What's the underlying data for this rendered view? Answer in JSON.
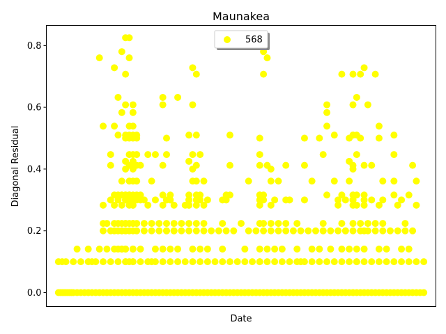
{
  "chart_data": {
    "type": "scatter",
    "title": "Maunakea",
    "xlabel": "Date",
    "ylabel": "Diagonal Residual",
    "ylim": [
      -0.045,
      0.865
    ],
    "xlim": [
      0,
      1
    ],
    "yticks": [
      0.0,
      0.2,
      0.4,
      0.6,
      0.8
    ],
    "ytick_labels": [
      "0.0",
      "0.2",
      "0.4",
      "0.6",
      "0.8"
    ],
    "xticks": [],
    "grid": false,
    "legend_position": "upper-center",
    "series": [
      {
        "name": "568",
        "color": "#ffff00",
        "x": [
          0.01,
          0.015,
          0.02,
          0.025,
          0.03,
          0.035,
          0.04,
          0.045,
          0.05,
          0.06,
          0.07,
          0.08,
          0.09,
          0.1,
          0.11,
          0.12,
          0.13,
          0.14,
          0.15,
          0.16,
          0.17,
          0.18,
          0.19,
          0.2,
          0.21,
          0.22,
          0.23,
          0.24,
          0.25,
          0.26,
          0.27,
          0.28,
          0.29,
          0.3,
          0.31,
          0.32,
          0.33,
          0.34,
          0.35,
          0.36,
          0.37,
          0.38,
          0.39,
          0.4,
          0.41,
          0.42,
          0.43,
          0.44,
          0.45,
          0.46,
          0.47,
          0.48,
          0.49,
          0.5,
          0.51,
          0.52,
          0.53,
          0.54,
          0.55,
          0.56,
          0.57,
          0.58,
          0.59,
          0.6,
          0.61,
          0.62,
          0.63,
          0.64,
          0.65,
          0.66,
          0.67,
          0.68,
          0.69,
          0.7,
          0.71,
          0.72,
          0.73,
          0.74,
          0.75,
          0.76,
          0.77,
          0.78,
          0.79,
          0.8,
          0.81,
          0.82,
          0.83,
          0.84,
          0.85,
          0.86,
          0.87,
          0.88,
          0.89,
          0.9,
          0.91,
          0.92,
          0.93,
          0.94,
          0.95,
          0.96,
          0.97,
          0.98,
          0.99,
          0.01,
          0.02,
          0.03,
          0.05,
          0.07,
          0.09,
          0.1,
          0.11,
          0.13,
          0.15,
          0.17,
          0.19,
          0.2,
          0.21,
          0.23,
          0.25,
          0.27,
          0.29,
          0.31,
          0.33,
          0.35,
          0.37,
          0.39,
          0.41,
          0.43,
          0.45,
          0.47,
          0.49,
          0.51,
          0.53,
          0.55,
          0.57,
          0.59,
          0.61,
          0.63,
          0.65,
          0.67,
          0.69,
          0.71,
          0.73,
          0.75,
          0.77,
          0.79,
          0.81,
          0.83,
          0.85,
          0.87,
          0.89,
          0.91,
          0.93,
          0.95,
          0.97,
          0.99,
          0.06,
          0.09,
          0.12,
          0.14,
          0.16,
          0.18,
          0.19,
          0.21,
          0.23,
          0.27,
          0.31,
          0.33,
          0.37,
          0.39,
          0.41,
          0.45,
          0.51,
          0.55,
          0.57,
          0.59,
          0.61,
          0.65,
          0.69,
          0.71,
          0.74,
          0.77,
          0.79,
          0.81,
          0.83,
          0.87,
          0.89,
          0.93,
          0.95,
          0.13,
          0.15,
          0.16,
          0.17,
          0.18,
          0.19,
          0.2,
          0.21,
          0.22,
          0.24,
          0.26,
          0.28,
          0.3,
          0.32,
          0.34,
          0.36,
          0.38,
          0.4,
          0.42,
          0.44,
          0.46,
          0.48,
          0.52,
          0.54,
          0.56,
          0.58,
          0.6,
          0.62,
          0.64,
          0.66,
          0.68,
          0.7,
          0.72,
          0.74,
          0.76,
          0.78,
          0.8,
          0.82,
          0.84,
          0.86,
          0.88,
          0.9,
          0.92,
          0.94,
          0.96,
          0.13,
          0.14,
          0.16,
          0.17,
          0.18,
          0.19,
          0.21,
          0.22,
          0.24,
          0.26,
          0.28,
          0.3,
          0.32,
          0.34,
          0.36,
          0.38,
          0.4,
          0.45,
          0.5,
          0.56,
          0.58,
          0.6,
          0.62,
          0.65,
          0.72,
          0.77,
          0.8,
          0.82,
          0.84,
          0.86,
          0.88,
          0.94,
          0.13,
          0.16,
          0.18,
          0.2,
          0.21,
          0.25,
          0.29,
          0.32,
          0.35,
          0.36,
          0.38,
          0.4,
          0.55,
          0.58,
          0.76,
          0.8,
          0.81,
          0.83,
          0.87,
          0.92,
          0.97,
          0.15,
          0.17,
          0.19,
          0.2,
          0.21,
          0.22,
          0.23,
          0.24,
          0.27,
          0.3,
          0.31,
          0.36,
          0.38,
          0.39,
          0.45,
          0.56,
          0.59,
          0.63,
          0.67,
          0.78,
          0.8,
          0.85,
          0.88,
          0.93,
          0.16,
          0.18,
          0.19,
          0.2,
          0.21,
          0.22,
          0.23,
          0.29,
          0.36,
          0.38,
          0.39,
          0.46,
          0.47,
          0.55,
          0.73,
          0.77,
          0.8,
          0.81,
          0.83,
          0.91,
          0.95,
          0.18,
          0.2,
          0.21,
          0.22,
          0.26,
          0.37,
          0.38,
          0.4,
          0.52,
          0.58,
          0.6,
          0.69,
          0.75,
          0.79,
          0.88,
          0.91,
          0.97,
          0.15,
          0.2,
          0.21,
          0.22,
          0.23,
          0.29,
          0.38,
          0.47,
          0.55,
          0.57,
          0.62,
          0.67,
          0.8,
          0.83,
          0.85,
          0.96,
          0.15,
          0.2,
          0.21,
          0.22,
          0.25,
          0.3,
          0.39,
          0.55,
          0.72,
          0.81,
          0.91,
          0.19,
          0.2,
          0.21,
          0.22,
          0.3,
          0.55,
          0.67,
          0.71,
          0.79,
          0.82,
          0.87,
          0.19,
          0.2,
          0.21,
          0.22,
          0.36,
          0.38,
          0.47,
          0.75,
          0.8,
          0.81,
          0.91,
          0.13,
          0.16,
          0.2,
          0.21,
          0.73,
          0.87,
          0.19,
          0.21,
          0.3,
          0.41,
          0.55,
          0.62,
          0.76,
          0.8,
          0.18,
          0.21,
          0.73,
          0.19,
          0.21,
          0.29,
          0.37,
          0.73,
          0.84,
          0.8,
          0.17,
          0.33,
          0.29,
          0.81,
          0.19,
          0.56,
          0.38,
          0.77,
          0.8,
          0.82,
          0.86,
          0.19,
          0.21,
          0.37,
          0.58,
          0.8,
          0.19,
          0.21,
          0.36,
          0.79,
          0.16,
          0.37,
          0.83,
          0.17,
          0.18,
          0.2,
          0.31,
          0.55,
          0.56,
          0.19,
          0.2,
          0.21,
          0.55,
          0.17,
          0.18,
          0.19,
          0.21,
          0.29,
          0.18,
          0.3,
          0.32,
          0.72,
          0.78,
          0.83,
          0.19,
          0.21,
          0.26,
          0.55,
          0.66,
          0.81,
          0.12,
          0.2,
          0.57,
          0.19,
          0.36,
          0.46,
          0.8,
          0.83,
          0.18,
          0.56,
          0.19,
          0.2,
          0.19,
          0.2,
          0.21,
          0.36,
          0.27,
          0.37,
          0.17
        ],
        "y": [
          0,
          0,
          0,
          0,
          0,
          0,
          0,
          0,
          0,
          0,
          0,
          0,
          0,
          0,
          0,
          0,
          0,
          0,
          0,
          0,
          0,
          0,
          0,
          0,
          0,
          0,
          0,
          0,
          0,
          0,
          0,
          0,
          0,
          0,
          0,
          0,
          0,
          0,
          0,
          0,
          0,
          0,
          0,
          0,
          0,
          0,
          0,
          0,
          0,
          0,
          0,
          0,
          0,
          0,
          0,
          0,
          0,
          0,
          0,
          0,
          0,
          0,
          0,
          0,
          0,
          0,
          0,
          0,
          0,
          0,
          0,
          0,
          0,
          0,
          0,
          0,
          0,
          0,
          0,
          0,
          0,
          0,
          0,
          0,
          0,
          0,
          0,
          0,
          0,
          0,
          0,
          0,
          0,
          0,
          0,
          0,
          0,
          0,
          0,
          0,
          0,
          0,
          0,
          0.1,
          0.1,
          0.1,
          0.1,
          0.1,
          0.1,
          0.1,
          0.1,
          0.1,
          0.1,
          0.1,
          0.1,
          0.1,
          0.1,
          0.1,
          0.1,
          0.1,
          0.1,
          0.1,
          0.1,
          0.1,
          0.1,
          0.1,
          0.1,
          0.1,
          0.1,
          0.1,
          0.1,
          0.1,
          0.1,
          0.1,
          0.1,
          0.1,
          0.1,
          0.1,
          0.1,
          0.1,
          0.1,
          0.1,
          0.1,
          0.1,
          0.1,
          0.1,
          0.1,
          0.1,
          0.1,
          0.1,
          0.1,
          0.1,
          0.1,
          0.1,
          0.1,
          0.1,
          0.141,
          0.141,
          0.141,
          0.141,
          0.141,
          0.141,
          0.141,
          0.141,
          0.141,
          0.141,
          0.141,
          0.141,
          0.141,
          0.141,
          0.141,
          0.141,
          0.141,
          0.141,
          0.141,
          0.141,
          0.141,
          0.141,
          0.141,
          0.141,
          0.141,
          0.141,
          0.141,
          0.141,
          0.141,
          0.141,
          0.141,
          0.141,
          0.141,
          0.2,
          0.2,
          0.2,
          0.2,
          0.2,
          0.2,
          0.2,
          0.2,
          0.2,
          0.2,
          0.2,
          0.2,
          0.2,
          0.2,
          0.2,
          0.2,
          0.2,
          0.2,
          0.2,
          0.2,
          0.2,
          0.2,
          0.2,
          0.2,
          0.2,
          0.2,
          0.2,
          0.2,
          0.2,
          0.2,
          0.2,
          0.2,
          0.2,
          0.2,
          0.2,
          0.2,
          0.2,
          0.2,
          0.2,
          0.2,
          0.2,
          0.2,
          0.2,
          0.2,
          0.2,
          0.224,
          0.224,
          0.224,
          0.224,
          0.224,
          0.224,
          0.224,
          0.224,
          0.224,
          0.224,
          0.224,
          0.224,
          0.224,
          0.224,
          0.224,
          0.224,
          0.224,
          0.224,
          0.224,
          0.224,
          0.224,
          0.224,
          0.224,
          0.224,
          0.224,
          0.224,
          0.224,
          0.224,
          0.224,
          0.224,
          0.224,
          0.224,
          0.283,
          0.283,
          0.283,
          0.283,
          0.283,
          0.283,
          0.283,
          0.283,
          0.283,
          0.283,
          0.283,
          0.283,
          0.283,
          0.283,
          0.283,
          0.283,
          0.283,
          0.283,
          0.283,
          0.283,
          0.283,
          0.3,
          0.3,
          0.3,
          0.3,
          0.3,
          0.3,
          0.3,
          0.3,
          0.3,
          0.3,
          0.3,
          0.3,
          0.3,
          0.3,
          0.3,
          0.3,
          0.3,
          0.3,
          0.3,
          0.3,
          0.3,
          0.3,
          0.3,
          0.3,
          0.316,
          0.316,
          0.316,
          0.316,
          0.316,
          0.316,
          0.316,
          0.316,
          0.316,
          0.316,
          0.316,
          0.316,
          0.316,
          0.316,
          0.316,
          0.316,
          0.316,
          0.316,
          0.316,
          0.316,
          0.316,
          0.361,
          0.361,
          0.361,
          0.361,
          0.361,
          0.361,
          0.361,
          0.361,
          0.361,
          0.361,
          0.361,
          0.361,
          0.361,
          0.361,
          0.361,
          0.361,
          0.361,
          0.412,
          0.412,
          0.412,
          0.412,
          0.412,
          0.412,
          0.412,
          0.412,
          0.412,
          0.412,
          0.412,
          0.412,
          0.412,
          0.412,
          0.412,
          0.412,
          0.447,
          0.447,
          0.447,
          0.447,
          0.447,
          0.447,
          0.447,
          0.447,
          0.447,
          0.447,
          0.447,
          0.5,
          0.5,
          0.5,
          0.5,
          0.5,
          0.5,
          0.5,
          0.5,
          0.5,
          0.5,
          0.5,
          0.51,
          0.51,
          0.51,
          0.51,
          0.51,
          0.51,
          0.51,
          0.51,
          0.51,
          0.51,
          0.51,
          0.539,
          0.539,
          0.539,
          0.539,
          0.539,
          0.539,
          0.3,
          0.3,
          0.3,
          0.3,
          0.3,
          0.3,
          0.3,
          0.3,
          0.583,
          0.583,
          0.583,
          0.608,
          0.608,
          0.608,
          0.608,
          0.608,
          0.608,
          0.608,
          0.632,
          0.632,
          0.632,
          0.632,
          0.707,
          0.707,
          0.707,
          0.707,
          0.707,
          0.707,
          0.707,
          0.4,
          0.4,
          0.4,
          0.4,
          0.4,
          0.425,
          0.425,
          0.425,
          0.425,
          0.728,
          0.728,
          0.728,
          0.316,
          0.316,
          0.316,
          0.316,
          0.316,
          0.316,
          0.224,
          0.224,
          0.224,
          0.224,
          0.141,
          0.141,
          0.141,
          0.141,
          0.141,
          0.2,
          0.2,
          0.2,
          0.2,
          0.2,
          0.2,
          0.1,
          0.1,
          0.1,
          0.1,
          0.1,
          0.1,
          0.76,
          0.76,
          0.76,
          0.3,
          0.3,
          0.3,
          0.3,
          0.3,
          0.78,
          0.78,
          0.825,
          0.825,
          0.316,
          0.316,
          0.283,
          0.283,
          0.447,
          0.447,
          0.51
        ]
      }
    ]
  }
}
